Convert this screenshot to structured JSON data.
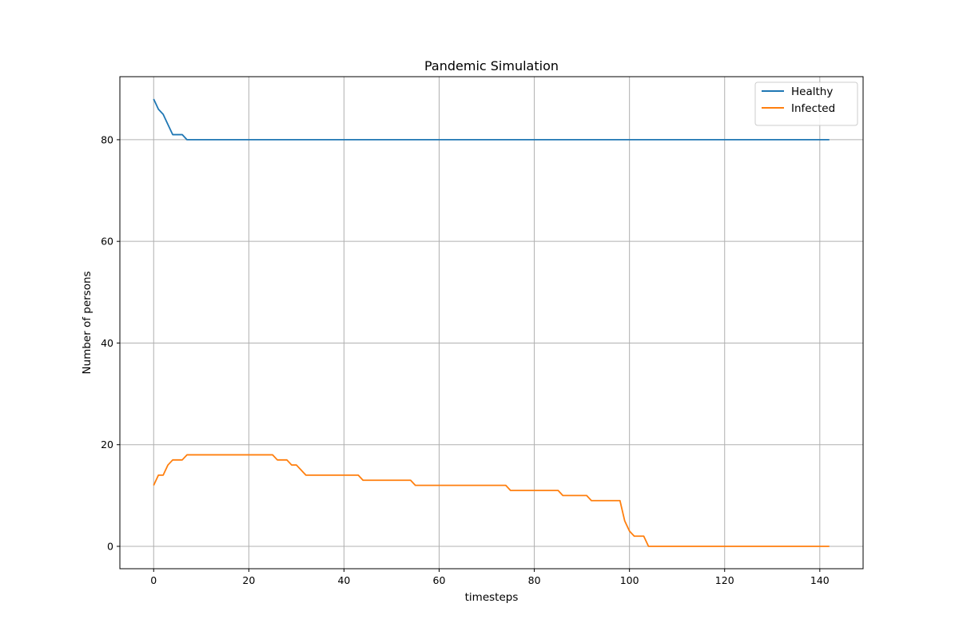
{
  "chart_data": {
    "type": "line",
    "title": "Pandemic Simulation",
    "xlabel": "timesteps",
    "ylabel": "Number of persons",
    "xlim": [
      -7.1,
      149.1
    ],
    "ylim": [
      -4.4,
      92.4
    ],
    "xticks": [
      0,
      20,
      40,
      60,
      80,
      100,
      120,
      140
    ],
    "yticks": [
      0,
      20,
      40,
      60,
      80
    ],
    "grid": true,
    "legend_position": "top-right",
    "series": [
      {
        "name": "Healthy",
        "color": "#1f77b4",
        "points": [
          [
            0,
            88
          ],
          [
            1,
            86
          ],
          [
            2,
            85
          ],
          [
            3,
            83
          ],
          [
            4,
            81
          ],
          [
            5,
            81
          ],
          [
            6,
            81
          ],
          [
            7,
            80
          ],
          [
            142,
            80
          ]
        ]
      },
      {
        "name": "Infected",
        "color": "#ff7f0e",
        "points": [
          [
            0,
            12
          ],
          [
            1,
            14
          ],
          [
            2,
            14
          ],
          [
            3,
            16
          ],
          [
            4,
            17
          ],
          [
            6,
            17
          ],
          [
            7,
            18
          ],
          [
            25,
            18
          ],
          [
            26,
            17
          ],
          [
            28,
            17
          ],
          [
            29,
            16
          ],
          [
            30,
            16
          ],
          [
            31,
            15
          ],
          [
            32,
            14
          ],
          [
            43,
            14
          ],
          [
            44,
            13
          ],
          [
            54,
            13
          ],
          [
            55,
            12
          ],
          [
            74,
            12
          ],
          [
            75,
            11
          ],
          [
            85,
            11
          ],
          [
            86,
            10
          ],
          [
            91,
            10
          ],
          [
            92,
            9
          ],
          [
            98,
            9
          ],
          [
            99,
            5
          ],
          [
            100,
            3
          ],
          [
            101,
            2
          ],
          [
            103,
            2
          ],
          [
            104,
            0
          ],
          [
            142,
            0
          ]
        ]
      }
    ]
  }
}
